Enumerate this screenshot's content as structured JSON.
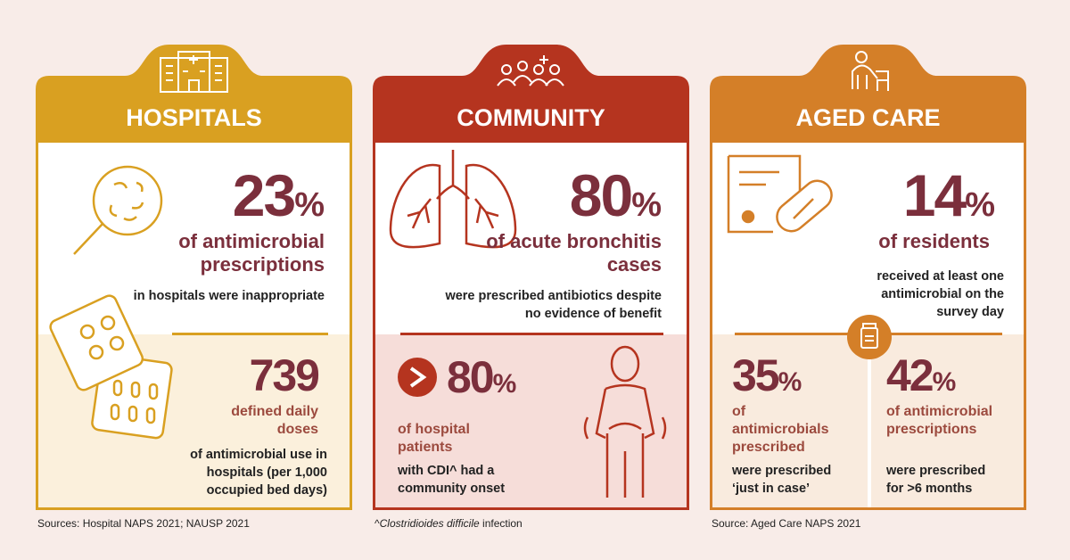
{
  "panels": [
    {
      "title": "HOSPITALS",
      "stats": [
        {
          "number": 23,
          "unit": "%",
          "label": "of antimicrobial prescriptions",
          "detail": "in hospitals were inappropriate"
        },
        {
          "number": 739,
          "label": "defined daily doses",
          "detail": "of antimicrobial use in hospitals (per 1,000 occupied bed days)"
        }
      ],
      "source": "Sources: Hospital NAPS 2021; NAUSP 2021"
    },
    {
      "title": "COMMUNITY",
      "stats": [
        {
          "number": 80,
          "unit": "%",
          "label": "of acute bronchitis cases",
          "detail": "were prescribed antibiotics despite no evidence of benefit"
        },
        {
          "number": 80,
          "unit": "%",
          "label": "of hospital patients",
          "detail": "with CDI^ had a community onset"
        }
      ],
      "note": {
        "prefix": "^",
        "italic": "Clostridioides difficile",
        "suffix": " infection"
      }
    },
    {
      "title": "AGED CARE",
      "stats": [
        {
          "number": 14,
          "unit": "%",
          "label": "of residents",
          "detail": "received at least one antimicrobial on the survey day"
        },
        {
          "number": 35,
          "unit": "%",
          "label": "of antimicrobials prescribed",
          "detail": "were prescribed ‘just in case’"
        },
        {
          "number": 42,
          "unit": "%",
          "label": "of antimicrobial prescriptions",
          "detail": "were prescribed for >6 months"
        }
      ],
      "source": "Source: Aged Care NAPS 2021"
    }
  ]
}
